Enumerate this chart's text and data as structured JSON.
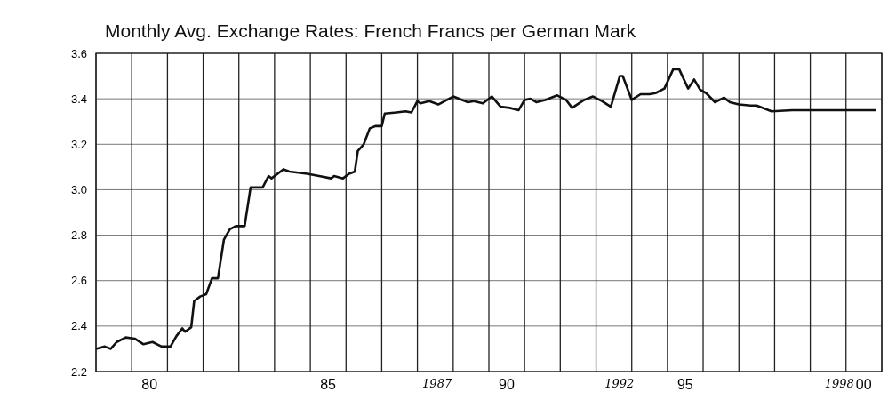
{
  "chart_data": {
    "type": "line",
    "title": "Monthly Avg. Exchange Rates: French Francs per German Mark",
    "x": [
      "1979-01",
      "1979-04",
      "1979-06",
      "1979-08",
      "1979-11",
      "1980-02",
      "1980-05",
      "1980-08",
      "1980-11",
      "1981-02",
      "1981-04",
      "1981-06",
      "1981-07",
      "1981-09",
      "1981-10",
      "1981-12",
      "1982-02",
      "1982-04",
      "1982-06",
      "1982-08",
      "1982-10",
      "1982-12",
      "1983-03",
      "1983-05",
      "1983-09",
      "1983-11",
      "1983-12",
      "1984-04",
      "1984-06",
      "1984-12",
      "1985-04",
      "1985-08",
      "1985-09",
      "1985-12",
      "1986-02",
      "1986-04",
      "1986-05",
      "1986-07",
      "1986-09",
      "1986-11",
      "1987-01",
      "1987-02",
      "1987-06",
      "1987-09",
      "1987-11",
      "1988-01",
      "1988-02",
      "1988-05",
      "1988-08",
      "1989-01",
      "1989-06",
      "1989-08",
      "1989-11",
      "1990-02",
      "1990-05",
      "1990-08",
      "1990-11",
      "1991-01",
      "1991-03",
      "1991-05",
      "1991-08",
      "1991-12",
      "1992-03",
      "1992-05",
      "1992-09",
      "1992-12",
      "1993-03",
      "1993-06",
      "1993-09",
      "1993-10",
      "1994-01",
      "1994-04",
      "1994-07",
      "1994-09",
      "1994-12",
      "1995-03",
      "1995-05",
      "1995-08",
      "1995-10",
      "1995-12",
      "1996-02",
      "1996-05",
      "1996-08",
      "1996-10",
      "1997-01",
      "1997-05",
      "1997-07",
      "1997-12",
      "1998-07",
      "2000-11"
    ],
    "series": [
      {
        "color": "#111111",
        "values": [
          2.3,
          2.31,
          2.3,
          2.33,
          2.35,
          2.345,
          2.32,
          2.33,
          2.31,
          2.31,
          2.355,
          2.39,
          2.375,
          2.395,
          2.51,
          2.53,
          2.54,
          2.61,
          2.61,
          2.78,
          2.826,
          2.84,
          2.84,
          3.01,
          3.01,
          3.06,
          3.05,
          3.09,
          3.08,
          3.07,
          3.06,
          3.05,
          3.06,
          3.05,
          3.07,
          3.08,
          3.17,
          3.2,
          3.27,
          3.28,
          3.28,
          3.335,
          3.34,
          3.345,
          3.34,
          3.39,
          3.38,
          3.39,
          3.375,
          3.41,
          3.385,
          3.39,
          3.38,
          3.41,
          3.365,
          3.36,
          3.35,
          3.395,
          3.4,
          3.385,
          3.395,
          3.415,
          3.395,
          3.36,
          3.395,
          3.41,
          3.39,
          3.365,
          3.5,
          3.5,
          3.395,
          3.42,
          3.42,
          3.425,
          3.445,
          3.53,
          3.53,
          3.445,
          3.485,
          3.44,
          3.425,
          3.385,
          3.405,
          3.385,
          3.375,
          3.37,
          3.37,
          3.345,
          3.35,
          3.35
        ]
      }
    ],
    "xlim": [
      "1979-01",
      "2001-01"
    ],
    "xticks": [
      {
        "value": "1979",
        "label": null
      },
      {
        "value": "1980",
        "label": null
      },
      {
        "value": "1981",
        "label": null
      },
      {
        "value": "1982",
        "label": null
      },
      {
        "value": "1983",
        "label": null
      },
      {
        "value": "1984",
        "label": null
      },
      {
        "value": "1985",
        "label": null
      },
      {
        "value": "1986",
        "label": null
      },
      {
        "value": "1987",
        "label": null
      },
      {
        "value": "1988",
        "label": null
      },
      {
        "value": "1989",
        "label": null
      },
      {
        "value": "1990",
        "label": null
      },
      {
        "value": "1991",
        "label": null
      },
      {
        "value": "1992",
        "label": null
      },
      {
        "value": "1993",
        "label": null
      },
      {
        "value": "1994",
        "label": null
      },
      {
        "value": "1995",
        "label": null
      },
      {
        "value": "1996",
        "label": null
      },
      {
        "value": "1997",
        "label": null
      },
      {
        "value": "1998",
        "label": null
      },
      {
        "value": "1999",
        "label": null
      },
      {
        "value": "2000",
        "label": null
      },
      {
        "value": "2001",
        "label": null
      },
      {
        "value": "1980-07",
        "label": "80"
      },
      {
        "value": "1985-07",
        "label": "85"
      },
      {
        "value": "1990-07",
        "label": "90"
      },
      {
        "value": "1995-07",
        "label": "95"
      },
      {
        "value": "2000-07",
        "label": "00"
      }
    ],
    "ylim": [
      2.2,
      3.6
    ],
    "yticks": [
      2.2,
      2.4,
      2.6,
      2.8,
      {
        "value": 3,
        "label": "3.0"
      },
      3.2,
      3.4,
      3.6
    ],
    "grid": true,
    "annotations": [
      "1987",
      "1992",
      "1998"
    ]
  }
}
